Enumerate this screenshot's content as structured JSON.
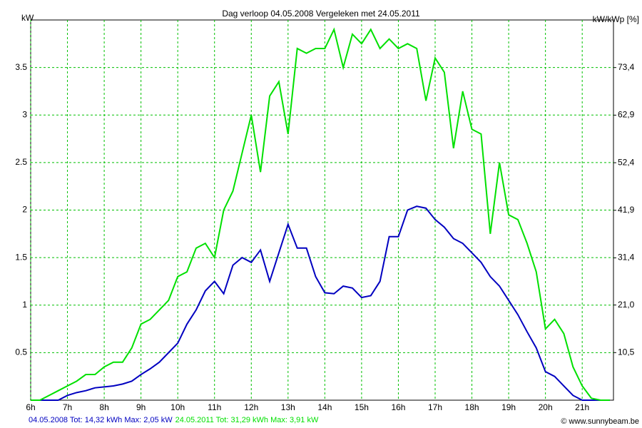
{
  "chart_data": {
    "type": "line",
    "title": "Dag  verloop 04.05.2008   Vergeleken met 24.05.2011",
    "ylabel": "kW",
    "y2label": "kW/kWp [%]",
    "credit": "© www.sunnybeam.be",
    "grid": true,
    "x": [
      6,
      6.25,
      6.5,
      6.75,
      7,
      7.25,
      7.5,
      7.75,
      8,
      8.25,
      8.5,
      8.75,
      9,
      9.25,
      9.5,
      9.75,
      10,
      10.25,
      10.5,
      10.75,
      11,
      11.25,
      11.5,
      11.75,
      12,
      12.25,
      12.5,
      12.75,
      13,
      13.25,
      13.5,
      13.75,
      14,
      14.25,
      14.5,
      14.75,
      15,
      15.25,
      15.5,
      15.75,
      16,
      16.25,
      16.5,
      16.75,
      17,
      17.25,
      17.5,
      17.75,
      18,
      18.25,
      18.5,
      18.75,
      19,
      19.25,
      19.5,
      19.75,
      20,
      20.25,
      20.5,
      20.75,
      21,
      21.25,
      21.5,
      21.75
    ],
    "series": [
      {
        "name": "04.05.2008 Tot: 14,32 kWh Max: 2,05 kW",
        "color": "#0000c0",
        "values": [
          0,
          0,
          0,
          0,
          0.05,
          0.08,
          0.1,
          0.13,
          0.14,
          0.15,
          0.17,
          0.2,
          0.27,
          0.33,
          0.4,
          0.5,
          0.6,
          0.8,
          0.95,
          1.15,
          1.25,
          1.12,
          1.42,
          1.5,
          1.45,
          1.58,
          1.25,
          1.55,
          1.85,
          1.6,
          1.6,
          1.3,
          1.13,
          1.12,
          1.2,
          1.18,
          1.08,
          1.1,
          1.25,
          1.72,
          1.72,
          2.0,
          2.04,
          2.02,
          1.9,
          1.82,
          1.7,
          1.65,
          1.55,
          1.45,
          1.3,
          1.2,
          1.05,
          0.9,
          0.72,
          0.55,
          0.3,
          0.25,
          0.15,
          0.05,
          0,
          0,
          0,
          0
        ]
      },
      {
        "name": "24.05.2011 Tot: 31,29 kWh Max: 3,91 kW",
        "color": "#00e000",
        "values": [
          0,
          0,
          0.05,
          0.1,
          0.15,
          0.2,
          0.27,
          0.27,
          0.35,
          0.4,
          0.4,
          0.55,
          0.8,
          0.85,
          0.95,
          1.05,
          1.3,
          1.35,
          1.6,
          1.65,
          1.5,
          2.0,
          2.2,
          2.6,
          3.0,
          2.4,
          3.2,
          3.35,
          2.8,
          3.7,
          3.65,
          3.7,
          3.7,
          3.9,
          3.5,
          3.85,
          3.75,
          3.9,
          3.7,
          3.8,
          3.7,
          3.75,
          3.7,
          3.15,
          3.6,
          3.45,
          2.65,
          3.25,
          2.85,
          2.8,
          1.75,
          2.5,
          1.95,
          1.9,
          1.65,
          1.35,
          0.75,
          0.85,
          0.7,
          0.35,
          0.15,
          0.02,
          0,
          0
        ]
      }
    ],
    "xlim": [
      6,
      21.85
    ],
    "xticks": [
      {
        "value": 6,
        "label": "6h"
      },
      {
        "value": 7,
        "label": "7h"
      },
      {
        "value": 8,
        "label": "8h"
      },
      {
        "value": 9,
        "label": "9h"
      },
      {
        "value": 10,
        "label": "10h"
      },
      {
        "value": 11,
        "label": "11h"
      },
      {
        "value": 12,
        "label": "12h"
      },
      {
        "value": 13,
        "label": "13h"
      },
      {
        "value": 14,
        "label": "14h"
      },
      {
        "value": 15,
        "label": "15h"
      },
      {
        "value": 16,
        "label": "16h"
      },
      {
        "value": 17,
        "label": "17h"
      },
      {
        "value": 18,
        "label": "18h"
      },
      {
        "value": 19,
        "label": "19h"
      },
      {
        "value": 20,
        "label": "20h"
      },
      {
        "value": 21,
        "label": "21h"
      }
    ],
    "ylim": [
      0,
      4.0
    ],
    "yticks": [
      0.5,
      1,
      1.5,
      2,
      2.5,
      3,
      3.5
    ],
    "y2lim": [
      0,
      83.9
    ],
    "y2ticks": [
      {
        "value": 10.5,
        "label": "10,5"
      },
      {
        "value": 21.0,
        "label": "21,0"
      },
      {
        "value": 31.4,
        "label": "31,4"
      },
      {
        "value": 41.9,
        "label": "41,9"
      },
      {
        "value": 52.4,
        "label": "52,4"
      },
      {
        "value": 62.9,
        "label": "62,9"
      },
      {
        "value": 73.4,
        "label": "73,4"
      }
    ]
  }
}
